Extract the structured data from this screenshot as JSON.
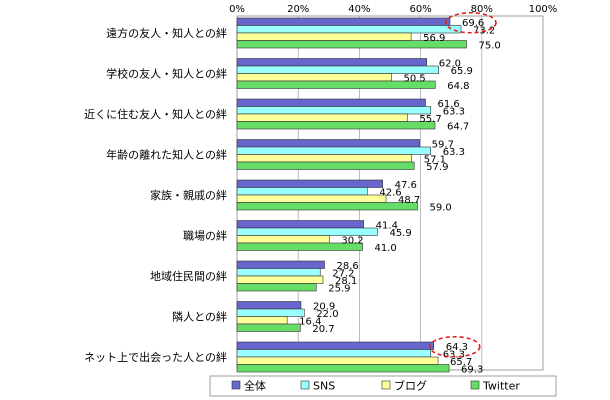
{
  "chart_data": {
    "type": "bar",
    "orientation": "horizontal",
    "title": "",
    "xlabel": "",
    "ylabel": "",
    "xlim": [
      0,
      100
    ],
    "x_ticks": [
      "0%",
      "20%",
      "40%",
      "60%",
      "80%",
      "100%"
    ],
    "categories": [
      "遠方の友人・知人との絆",
      "学校の友人・知人との絆",
      "近くに住む友人・知人との絆",
      "年齢の離れた知人との絆",
      "家族・親戚の絆",
      "職場の絆",
      "地域住民間の絆",
      "隣人との絆",
      "ネット上で出会った人との絆"
    ],
    "series": [
      {
        "name": "全体",
        "color": "#6666cc",
        "values": [
          69.6,
          62.0,
          61.6,
          59.7,
          47.6,
          41.4,
          28.6,
          20.9,
          64.3
        ]
      },
      {
        "name": "SNS",
        "color": "#99ffff",
        "values": [
          73.2,
          65.9,
          63.3,
          63.3,
          42.6,
          45.9,
          27.2,
          22.0,
          63.3
        ]
      },
      {
        "name": "ブログ",
        "color": "#ffff99",
        "values": [
          56.9,
          50.5,
          55.7,
          57.1,
          48.7,
          30.2,
          28.1,
          16.4,
          65.7
        ]
      },
      {
        "name": "Twitter",
        "color": "#66dd66",
        "values": [
          75.0,
          64.8,
          64.7,
          57.9,
          59.0,
          41.0,
          25.9,
          20.7,
          69.3
        ]
      }
    ],
    "highlighted": [
      {
        "category_index": 0,
        "series_index": 0
      },
      {
        "category_index": 8,
        "series_index": 0
      }
    ],
    "grid": true,
    "legend_position": "bottom"
  }
}
